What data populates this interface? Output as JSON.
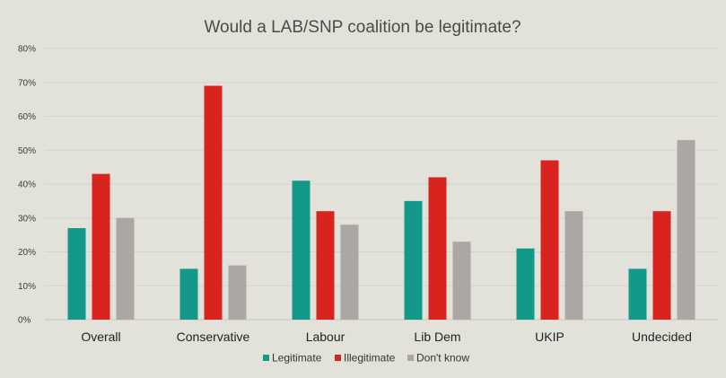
{
  "chart_data": {
    "type": "bar",
    "title": "Would a LAB/SNP coalition be legitimate?",
    "xlabel": "",
    "ylabel": "",
    "categories": [
      "Overall",
      "Conservative",
      "Labour",
      "Lib Dem",
      "UKIP",
      "Undecided"
    ],
    "series": [
      {
        "name": "Legitimate",
        "color": "#13998a",
        "values": [
          27,
          15,
          41,
          35,
          21,
          15
        ]
      },
      {
        "name": "Illegitimate",
        "color": "#d9231e",
        "values": [
          43,
          69,
          32,
          42,
          47,
          32
        ]
      },
      {
        "name": "Don't know",
        "color": "#aba7a4",
        "values": [
          30,
          16,
          28,
          23,
          32,
          53
        ]
      }
    ],
    "ylim": [
      0,
      80
    ],
    "yticks": [
      0,
      10,
      20,
      30,
      40,
      50,
      60,
      70,
      80
    ],
    "ytick_labels": [
      "0%",
      "10%",
      "20%",
      "30%",
      "40%",
      "50%",
      "60%",
      "70%",
      "80%"
    ],
    "grid": true,
    "legend_position": "bottom"
  }
}
